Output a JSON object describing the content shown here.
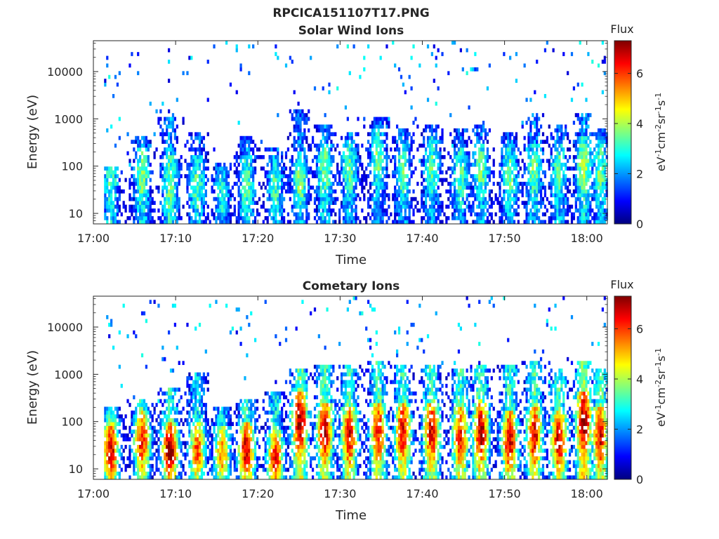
{
  "figure_title": "RPCICA151107T17.PNG",
  "colormap": [
    "#00007f",
    "#0000ff",
    "#007fff",
    "#00ffff",
    "#7fff7f",
    "#ffff00",
    "#ff7f00",
    "#ff0000",
    "#7f0000"
  ],
  "chart_data": [
    {
      "type": "heatmap",
      "title": "Solar Wind Ions",
      "xlabel": "Time",
      "ylabel": "Energy (eV)",
      "x_ticks": [
        "17:00",
        "17:10",
        "17:20",
        "17:30",
        "17:40",
        "17:50",
        "18:00"
      ],
      "x_tick_minutes": [
        0,
        10,
        20,
        30,
        40,
        50,
        60
      ],
      "xlim_minutes": [
        0,
        62.5
      ],
      "y_scale": "log",
      "y_ticks": [
        "10",
        "100",
        "1000",
        "10000"
      ],
      "y_tick_values": [
        10,
        100,
        1000,
        10000
      ],
      "ylim": [
        6,
        45000
      ],
      "colorbar": {
        "label": "Flux",
        "units": "eV-1cm-2sr-1s-1",
        "ticks": [
          "0",
          "2",
          "4",
          "6"
        ],
        "tick_values": [
          0,
          2,
          4,
          6
        ],
        "clim": [
          0,
          7.3
        ]
      },
      "bursts": [
        {
          "t": 2.0,
          "peak": 1.9,
          "top": 2.0,
          "base": 2.5,
          "amp": 3.4
        },
        {
          "t": 5.8,
          "peak": 1.8,
          "top": 2.6,
          "base": 2.5,
          "amp": 3.6
        },
        {
          "t": 9.2,
          "peak": 1.6,
          "top": 3.0,
          "base": 2.6,
          "amp": 3.6
        },
        {
          "t": 12.5,
          "peak": 1.6,
          "top": 2.7,
          "base": 2.2,
          "amp": 3.4
        },
        {
          "t": 15.5,
          "peak": 1.4,
          "top": 2.1,
          "base": 1.8,
          "amp": 3.0
        },
        {
          "t": 18.5,
          "peak": 1.6,
          "top": 2.6,
          "base": 2.3,
          "amp": 3.4
        },
        {
          "t": 22.0,
          "peak": 1.6,
          "top": 2.4,
          "base": 2.0,
          "amp": 3.2
        },
        {
          "t": 25.0,
          "peak": 1.7,
          "top": 3.2,
          "base": 2.2,
          "amp": 3.8
        },
        {
          "t": 28.0,
          "peak": 1.9,
          "top": 2.9,
          "base": 2.3,
          "amp": 3.6
        },
        {
          "t": 31.0,
          "peak": 1.9,
          "top": 2.7,
          "base": 2.1,
          "amp": 3.5
        },
        {
          "t": 34.5,
          "peak": 2.2,
          "top": 3.0,
          "base": 2.0,
          "amp": 3.6
        },
        {
          "t": 37.5,
          "peak": 1.9,
          "top": 2.8,
          "base": 2.0,
          "amp": 3.5
        },
        {
          "t": 41.0,
          "peak": 2.0,
          "top": 2.9,
          "base": 2.1,
          "amp": 3.4
        },
        {
          "t": 44.5,
          "peak": 1.8,
          "top": 2.8,
          "base": 2.0,
          "amp": 3.4
        },
        {
          "t": 47.0,
          "peak": 1.9,
          "top": 2.9,
          "base": 2.1,
          "amp": 3.6
        },
        {
          "t": 50.5,
          "peak": 1.8,
          "top": 2.7,
          "base": 2.1,
          "amp": 3.5
        },
        {
          "t": 53.5,
          "peak": 1.9,
          "top": 3.1,
          "base": 2.2,
          "amp": 3.6
        },
        {
          "t": 56.5,
          "peak": 1.9,
          "top": 2.9,
          "base": 2.2,
          "amp": 3.4
        },
        {
          "t": 59.5,
          "peak": 2.0,
          "top": 3.1,
          "base": 2.5,
          "amp": 4.0
        },
        {
          "t": 61.5,
          "peak": 1.9,
          "top": 2.8,
          "base": 2.2,
          "amp": 3.5
        }
      ]
    },
    {
      "type": "heatmap",
      "title": "Cometary Ions",
      "xlabel": "Time",
      "ylabel": "Energy (eV)",
      "x_ticks": [
        "17:00",
        "17:10",
        "17:20",
        "17:30",
        "17:40",
        "17:50",
        "18:00"
      ],
      "x_tick_minutes": [
        0,
        10,
        20,
        30,
        40,
        50,
        60
      ],
      "xlim_minutes": [
        0,
        62.5
      ],
      "y_scale": "log",
      "y_ticks": [
        "10",
        "100",
        "1000",
        "10000"
      ],
      "y_tick_values": [
        10,
        100,
        1000,
        10000
      ],
      "ylim": [
        6,
        45000
      ],
      "colorbar": {
        "label": "Flux",
        "units": "eV-1cm-2sr-1s-1",
        "ticks": [
          "0",
          "2",
          "4",
          "6"
        ],
        "tick_values": [
          0,
          2,
          4,
          6
        ],
        "clim": [
          0,
          7.3
        ]
      },
      "bursts": [
        {
          "t": 2.0,
          "peak": 1.4,
          "top": 2.3,
          "base": 3.6,
          "amp": 6.8
        },
        {
          "t": 5.8,
          "peak": 1.6,
          "top": 2.5,
          "base": 3.5,
          "amp": 6.4
        },
        {
          "t": 9.2,
          "peak": 1.4,
          "top": 2.7,
          "base": 3.8,
          "amp": 7.2
        },
        {
          "t": 12.5,
          "peak": 1.4,
          "top": 3.0,
          "base": 3.2,
          "amp": 5.8
        },
        {
          "t": 15.5,
          "peak": 1.3,
          "top": 2.3,
          "base": 3.0,
          "amp": 5.4
        },
        {
          "t": 18.5,
          "peak": 1.4,
          "top": 2.5,
          "base": 3.6,
          "amp": 7.0
        },
        {
          "t": 22.0,
          "peak": 1.2,
          "top": 2.6,
          "base": 3.4,
          "amp": 6.4
        },
        {
          "t": 25.0,
          "peak": 2.0,
          "top": 3.1,
          "base": 4.4,
          "amp": 7.2
        },
        {
          "t": 28.0,
          "peak": 1.8,
          "top": 3.2,
          "base": 4.2,
          "amp": 6.8
        },
        {
          "t": 31.0,
          "peak": 1.7,
          "top": 3.2,
          "base": 4.0,
          "amp": 6.6
        },
        {
          "t": 34.5,
          "peak": 1.8,
          "top": 3.3,
          "base": 4.0,
          "amp": 6.4
        },
        {
          "t": 37.5,
          "peak": 1.8,
          "top": 3.2,
          "base": 4.0,
          "amp": 6.6
        },
        {
          "t": 41.0,
          "peak": 1.8,
          "top": 3.2,
          "base": 4.1,
          "amp": 6.7
        },
        {
          "t": 44.5,
          "peak": 1.7,
          "top": 3.1,
          "base": 4.0,
          "amp": 6.4
        },
        {
          "t": 47.0,
          "peak": 1.8,
          "top": 3.2,
          "base": 4.2,
          "amp": 7.0
        },
        {
          "t": 50.5,
          "peak": 1.6,
          "top": 3.2,
          "base": 4.0,
          "amp": 6.8
        },
        {
          "t": 53.5,
          "peak": 1.7,
          "top": 3.3,
          "base": 4.2,
          "amp": 6.6
        },
        {
          "t": 56.5,
          "peak": 1.6,
          "top": 3.1,
          "base": 4.0,
          "amp": 6.8
        },
        {
          "t": 59.5,
          "peak": 2.0,
          "top": 3.3,
          "base": 4.6,
          "amp": 7.2
        },
        {
          "t": 61.5,
          "peak": 1.7,
          "top": 3.1,
          "base": 4.2,
          "amp": 6.6
        }
      ]
    }
  ]
}
